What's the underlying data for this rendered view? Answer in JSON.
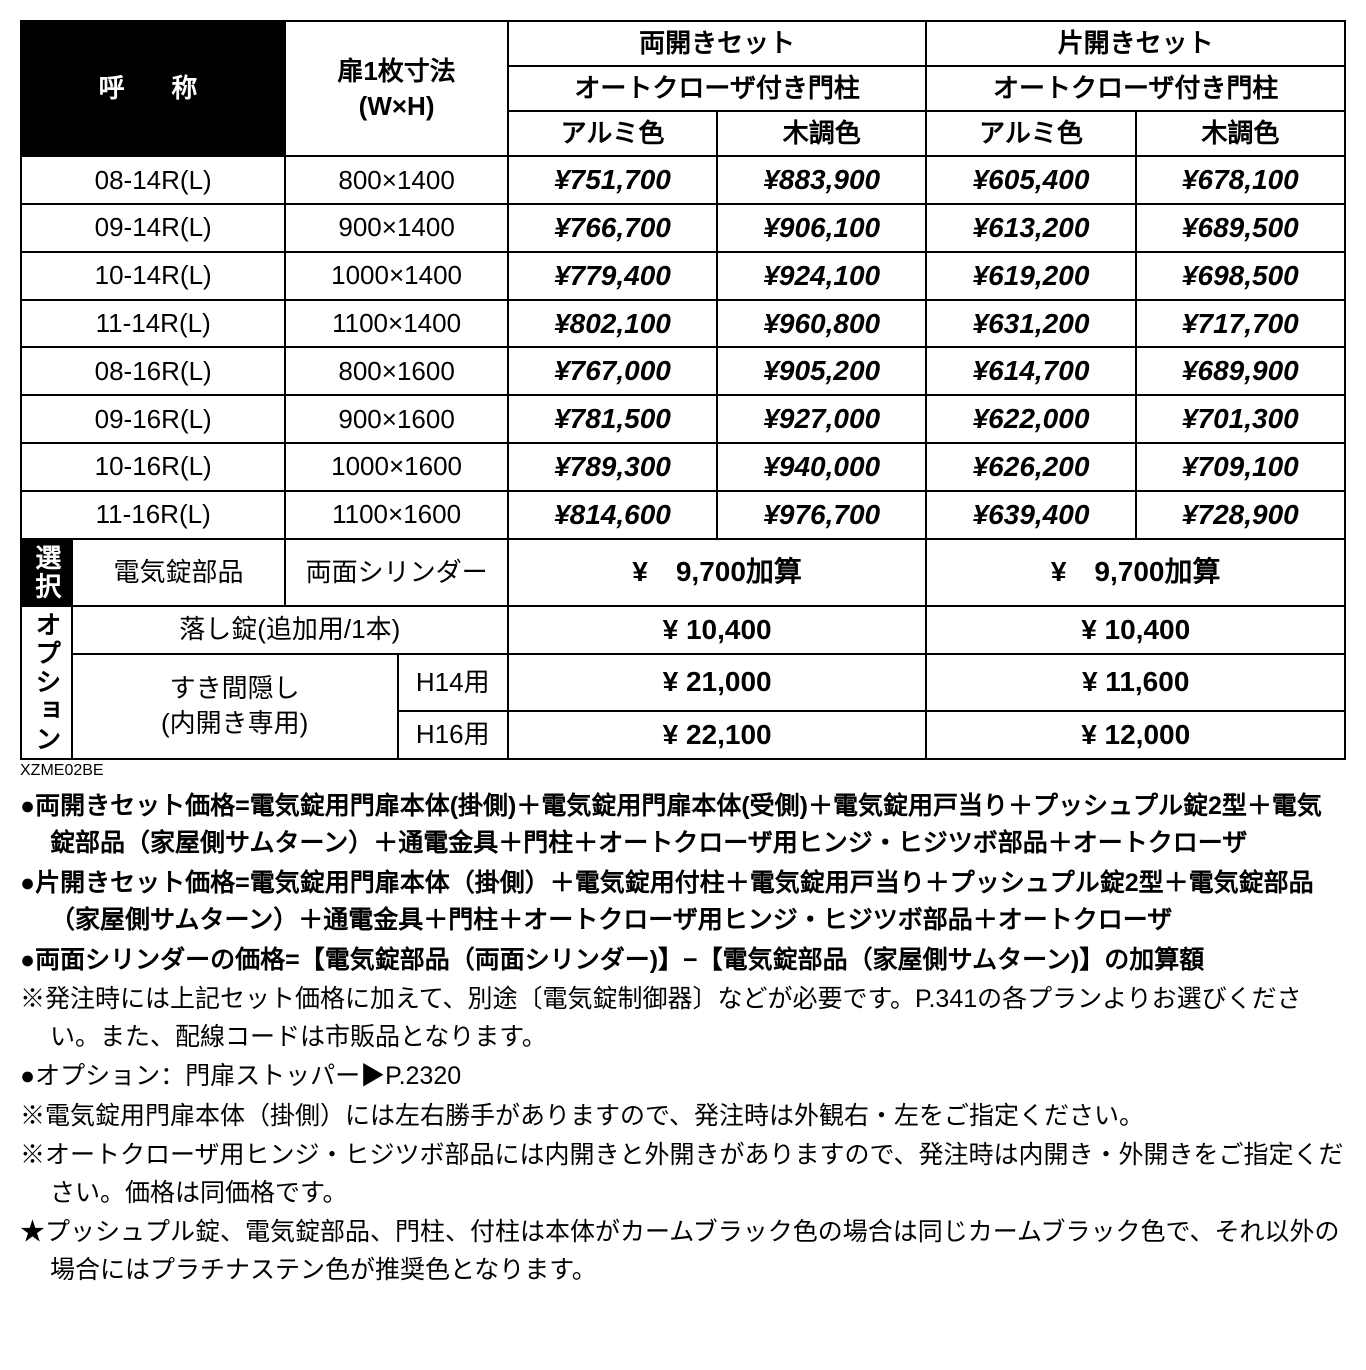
{
  "table": {
    "code": "XZME02BE",
    "colors": {
      "black": "#000000",
      "white": "#ffffff"
    },
    "headers": {
      "name": "呼　称",
      "dim_line1": "扉1枚寸法",
      "dim_line2": "(W×H)",
      "double_set": "両開きセット",
      "single_set": "片開きセット",
      "autocloser": "オートクローザ付き門柱",
      "aluminum": "アルミ色",
      "wood": "木調色"
    },
    "rows": [
      {
        "name": "08-14R(L)",
        "dim": "800×1400",
        "p1": "¥751,700",
        "p2": "¥883,900",
        "p3": "¥605,400",
        "p4": "¥678,100"
      },
      {
        "name": "09-14R(L)",
        "dim": "900×1400",
        "p1": "¥766,700",
        "p2": "¥906,100",
        "p3": "¥613,200",
        "p4": "¥689,500"
      },
      {
        "name": "10-14R(L)",
        "dim": "1000×1400",
        "p1": "¥779,400",
        "p2": "¥924,100",
        "p3": "¥619,200",
        "p4": "¥698,500"
      },
      {
        "name": "11-14R(L)",
        "dim": "1100×1400",
        "p1": "¥802,100",
        "p2": "¥960,800",
        "p3": "¥631,200",
        "p4": "¥717,700"
      },
      {
        "name": "08-16R(L)",
        "dim": "800×1600",
        "p1": "¥767,000",
        "p2": "¥905,200",
        "p3": "¥614,700",
        "p4": "¥689,900"
      },
      {
        "name": "09-16R(L)",
        "dim": "900×1600",
        "p1": "¥781,500",
        "p2": "¥927,000",
        "p3": "¥622,000",
        "p4": "¥701,300"
      },
      {
        "name": "10-16R(L)",
        "dim": "1000×1600",
        "p1": "¥789,300",
        "p2": "¥940,000",
        "p3": "¥626,200",
        "p4": "¥709,100"
      },
      {
        "name": "11-16R(L)",
        "dim": "1100×1600",
        "p1": "¥814,600",
        "p2": "¥976,700",
        "p3": "¥639,400",
        "p4": "¥728,900"
      }
    ],
    "select": {
      "label": "選択",
      "electric_parts": "電気錠部品",
      "double_cylinder": "両面シリンダー",
      "price_both": "¥　9,700加算",
      "price_single": "¥　9,700加算"
    },
    "options": {
      "label": "オプション",
      "drop_lock": "落し錠(追加用/1本)",
      "drop_lock_both": "¥  10,400",
      "drop_lock_single": "¥  10,400",
      "gap_cover_line1": "すき間隠し",
      "gap_cover_line2": "(内開き専用)",
      "h14": "H14用",
      "h14_both": "¥  21,000",
      "h14_single": "¥  11,600",
      "h16": "H16用",
      "h16_both": "¥  22,100",
      "h16_single": "¥  12,000"
    }
  },
  "notes": {
    "n1": "両開きセット価格=電気錠用門扉本体(掛側)＋電気錠用門扉本体(受側)＋電気錠用戸当り＋プッシュプル錠2型＋電気錠部品（家屋側サムターン）＋通電金具＋門柱＋オートクローザ用ヒンジ・ヒジツボ部品＋オートクローザ",
    "n2": "片開きセット価格=電気錠用門扉本体（掛側）＋電気錠用付柱＋電気錠用戸当り＋プッシュプル錠2型＋電気錠部品（家屋側サムターン）＋通電金具＋門柱＋オートクローザ用ヒンジ・ヒジツボ部品＋オートクローザ",
    "n3": "両面シリンダーの価格=【電気錠部品（両面シリンダー)】−【電気錠部品（家屋側サムターン)】の加算額",
    "n4": "発注時には上記セット価格に加えて、別途〔電気錠制御器〕などが必要です。P.341の各プランよりお選びください。また、配線コードは市販品となります。",
    "n5": "オプション：門扉ストッパー▶P.2320",
    "n6": "電気錠用門扉本体（掛側）には左右勝手がありますので、発注時は外観右・左をご指定ください。",
    "n7": "オートクローザ用ヒンジ・ヒジツボ部品には内開きと外開きがありますので、発注時は内開き・外開きをご指定ください。価格は同価格です。",
    "n8": "プッシュプル錠、電気錠部品、門柱、付柱は本体がカームブラック色の場合は同じカームブラック色で、それ以外の場合にはプラチナステン色が推奨色となります。"
  }
}
